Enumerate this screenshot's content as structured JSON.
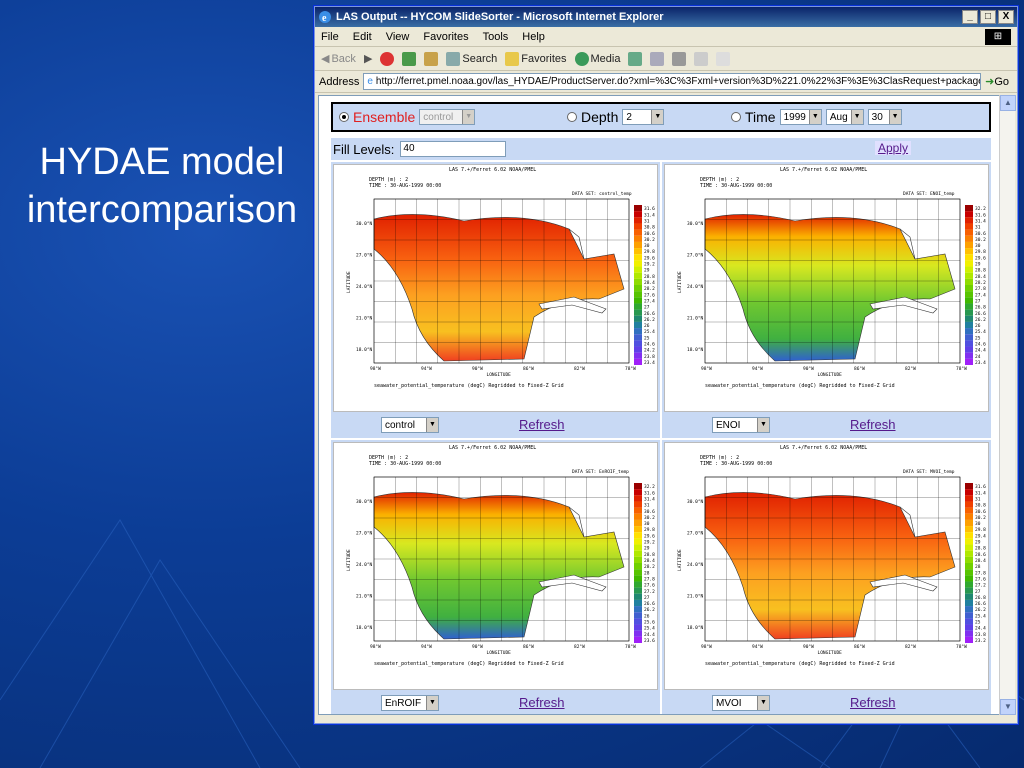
{
  "slide": {
    "title_line1": "HYDAE model",
    "title_line2": "intercomparison"
  },
  "window": {
    "title": "LAS Output -- HYCOM SlideSorter - Microsoft Internet Explorer",
    "min": "_",
    "max": "□",
    "close": "X"
  },
  "menu": [
    "File",
    "Edit",
    "View",
    "Favorites",
    "Tools",
    "Help"
  ],
  "toolbar": {
    "back": "Back",
    "search": "Search",
    "favorites": "Favorites",
    "media": "Media"
  },
  "address": {
    "label": "Address",
    "url": "http://ferret.pmel.noaa.gov/las_HYDAE/ProductServer.do?xml=%3C%3Fxml+version%3D%221.0%22%3F%3E%3ClasRequest+package%3D%22%22+href%3D%",
    "go": "Go"
  },
  "controls": {
    "ensemble_label": "Ensemble",
    "ensemble_value": "control",
    "depth_label": "Depth",
    "depth_value": "2",
    "time_label": "Time",
    "year": "1999",
    "month": "Aug",
    "day": "30",
    "fill_label": "Fill Levels:",
    "fill_value": "40",
    "apply": "Apply"
  },
  "plot_common": {
    "header": "LAS 7.+/Ferret 6.02     NOAA/PMEL",
    "depth": "DEPTH (m) : 2",
    "time": "TIME : 30-AUG-1999 00:00",
    "caption": "seawater_potential_temperature (degC) Regridded to Fixed-Z Grid",
    "xlabel": "LONGITUDE",
    "ylabel": "LATITUDE",
    "xticks": [
      "98°W",
      "94°W",
      "90°W",
      "86°W",
      "82°W",
      "78°W"
    ],
    "yticks": [
      "30.0°N",
      "27.0°N",
      "24.0°N",
      "21.0°N",
      "18.0°N"
    ],
    "refresh": "Refresh"
  },
  "plots": [
    {
      "selector": "control",
      "dataset": "DATA SET: control_temp",
      "scale": [
        "31.6",
        "31.4",
        "31",
        "30.8",
        "30.6",
        "30.2",
        "30",
        "29.8",
        "29.6",
        "29.2",
        "29",
        "28.8",
        "28.4",
        "28.2",
        "27.6",
        "27.4",
        "27",
        "26.6",
        "26.2",
        "26",
        "25.4",
        "25",
        "24.6",
        "24.2",
        "23.8",
        "23.4"
      ],
      "palette": "warm"
    },
    {
      "selector": "ENOI",
      "dataset": "DATA SET: ENOI_temp",
      "scale": [
        "32.2",
        "31.6",
        "31.4",
        "31",
        "30.6",
        "30.2",
        "30",
        "29.8",
        "29.6",
        "29",
        "28.8",
        "28.4",
        "28.2",
        "27.8",
        "27.4",
        "27",
        "26.8",
        "26.6",
        "26.2",
        "26",
        "25.4",
        "25",
        "24.6",
        "24.4",
        "24",
        "23.4"
      ],
      "palette": "cool"
    },
    {
      "selector": "EnROIF",
      "dataset": "DATA SET: EnROIF_temp",
      "scale": [
        "32.2",
        "31.6",
        "31.4",
        "31",
        "30.6",
        "30.2",
        "30",
        "29.8",
        "29.6",
        "29.2",
        "29",
        "28.8",
        "28.4",
        "28.2",
        "28",
        "27.8",
        "27.6",
        "27.2",
        "27",
        "26.6",
        "26.2",
        "26",
        "25.6",
        "25.4",
        "24.4",
        "23.6"
      ],
      "palette": "cool"
    },
    {
      "selector": "MVOI",
      "dataset": "DATA SET: MVOI_temp",
      "scale": [
        "31.6",
        "31.4",
        "31",
        "30.8",
        "30.6",
        "30.2",
        "30",
        "29.8",
        "29.4",
        "29",
        "28.8",
        "28.6",
        "28.4",
        "28",
        "27.8",
        "27.6",
        "27.2",
        "27",
        "26.8",
        "26.6",
        "26.2",
        "25.4",
        "25",
        "24.4",
        "23.8",
        "23.2"
      ],
      "palette": "warm"
    }
  ],
  "colors": {
    "slide_bg": "#0c3d96",
    "panel_bg": "#c8d9f4",
    "ensemble_text": "#e02020",
    "link": "#551a8b"
  }
}
